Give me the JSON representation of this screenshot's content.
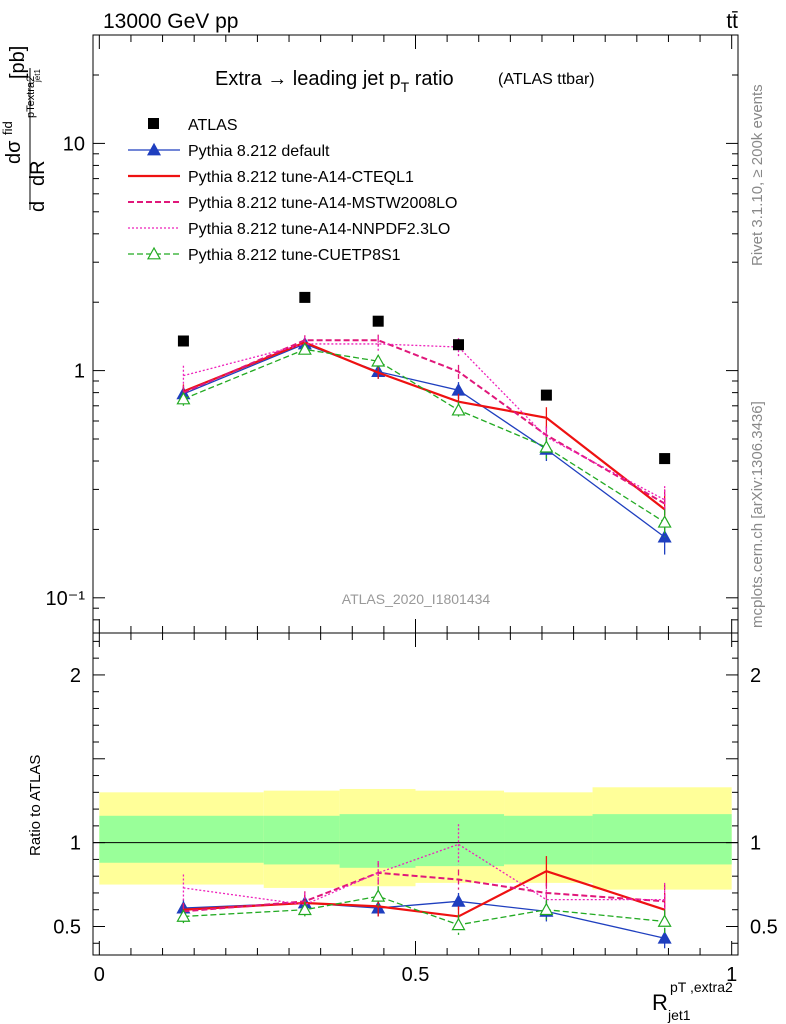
{
  "header": {
    "energy_label": "13000 GeV pp",
    "process_label": "tt̄"
  },
  "side": {
    "rivet_label": "Rivet 3.1.10, ≥ 200k events",
    "mcplots_label": "mcplots.cern.ch [arXiv:1306.3436]"
  },
  "chart_data": [
    {
      "type": "line",
      "title_main": "Extra → leading jet p",
      "title_sub": "T",
      "title_tail": " ratio",
      "title_small": "(ATLAS ttbar)",
      "ylabel": "dσ/dR [pb]",
      "watermark": "ATLAS_2020_I1801434",
      "yscale": "log",
      "ylim": [
        0.07,
        30
      ],
      "xlim": [
        -0.01,
        1.01
      ],
      "y_ticks": [
        {
          "v": 10,
          "label": "10"
        },
        {
          "v": 1,
          "label": "1"
        },
        {
          "v": 0.1,
          "label": "10⁻¹"
        }
      ],
      "x": [
        0.133,
        0.325,
        0.441,
        0.568,
        0.707,
        0.894
      ],
      "reference": {
        "name": "ATLAS",
        "values": [
          1.35,
          2.1,
          1.65,
          1.3,
          0.78,
          0.41
        ],
        "color": "#000000"
      },
      "series": [
        {
          "name": "Pythia 8.212 default",
          "color": "#1f3fbf",
          "style": "solid",
          "marker": "filled-triangle",
          "values": [
            0.79,
            1.31,
            0.99,
            0.82,
            0.45,
            0.185
          ],
          "errors": [
            0.06,
            0.06,
            0.07,
            0.07,
            0.05,
            0.03
          ]
        },
        {
          "name": "Pythia 8.212 tune-A14-CTEQL1",
          "color": "#ee1111",
          "style": "solid",
          "marker": "none",
          "values": [
            0.81,
            1.33,
            0.98,
            0.73,
            0.62,
            0.245
          ],
          "errors": [
            0.06,
            0.06,
            0.06,
            0.06,
            0.07,
            0.04
          ]
        },
        {
          "name": "Pythia 8.212 tune-A14-MSTW2008LO",
          "color": "#e0177a",
          "style": "dashed",
          "marker": "none",
          "values": [
            0.8,
            1.36,
            1.36,
            0.99,
            0.52,
            0.26
          ],
          "errors": [
            0.06,
            0.07,
            0.08,
            0.07,
            0.05,
            0.04
          ]
        },
        {
          "name": "Pythia 8.212 tune-A14-NNPDF2.3LO",
          "color": "#ee22bb",
          "style": "dotted",
          "marker": "none",
          "values": [
            0.95,
            1.31,
            1.31,
            1.27,
            0.51,
            0.27
          ],
          "errors": [
            0.1,
            0.1,
            0.1,
            0.12,
            0.05,
            0.04
          ]
        },
        {
          "name": "Pythia 8.212 tune-CUETP8S1",
          "color": "#22aa22",
          "style": "dashed",
          "marker": "open-triangle",
          "values": [
            0.75,
            1.24,
            1.1,
            0.67,
            0.46,
            0.215
          ],
          "errors": [
            0.05,
            0.06,
            0.07,
            0.06,
            0.05,
            0.03
          ]
        }
      ]
    },
    {
      "type": "line",
      "ylabel": "Ratio to ATLAS",
      "xlabel_main": "R",
      "xlabel_sub": "jet1",
      "xlabel_sup": "pT ,extra2",
      "ylim": [
        0.33,
        2.25
      ],
      "xlim": [
        -0.01,
        1.01
      ],
      "y_ticks": [
        {
          "v": 2,
          "label": "2"
        },
        {
          "v": 1,
          "label": "1"
        },
        {
          "v": 0.5,
          "label": "0.5"
        }
      ],
      "x_ticks": [
        {
          "v": 0,
          "label": "0"
        },
        {
          "v": 0.5,
          "label": "0.5"
        },
        {
          "v": 1,
          "label": "1"
        }
      ],
      "bands": {
        "bins": [
          [
            0,
            0.26
          ],
          [
            0.26,
            0.38
          ],
          [
            0.38,
            0.5
          ],
          [
            0.5,
            0.64
          ],
          [
            0.64,
            0.78
          ],
          [
            0.78,
            1.0
          ]
        ],
        "yellow": [
          [
            0.75,
            1.3
          ],
          [
            0.73,
            1.31
          ],
          [
            0.74,
            1.32
          ],
          [
            0.76,
            1.31
          ],
          [
            0.76,
            1.3
          ],
          [
            0.72,
            1.33
          ]
        ],
        "green": [
          [
            0.88,
            1.16
          ],
          [
            0.87,
            1.16
          ],
          [
            0.85,
            1.17
          ],
          [
            0.86,
            1.17
          ],
          [
            0.87,
            1.16
          ],
          [
            0.87,
            1.17
          ]
        ]
      },
      "series": [
        {
          "name": "Pythia 8.212 default",
          "color": "#1f3fbf",
          "style": "solid",
          "marker": "filled-triangle",
          "values": [
            0.61,
            0.64,
            0.61,
            0.65,
            0.59,
            0.43
          ],
          "errors": [
            0.05,
            0.04,
            0.05,
            0.05,
            0.06,
            0.06
          ]
        },
        {
          "name": "Pythia 8.212 tune-A14-CTEQL1",
          "color": "#ee1111",
          "style": "solid",
          "marker": "none",
          "values": [
            0.6,
            0.64,
            0.62,
            0.56,
            0.83,
            0.6
          ],
          "errors": [
            0.04,
            0.05,
            0.06,
            0.06,
            0.09,
            0.1
          ]
        },
        {
          "name": "Pythia 8.212 tune-A14-MSTW2008LO",
          "color": "#e0177a",
          "style": "dashed",
          "marker": "none",
          "values": [
            0.59,
            0.65,
            0.82,
            0.78,
            0.7,
            0.65
          ],
          "errors": [
            0.05,
            0.06,
            0.07,
            0.06,
            0.06,
            0.1
          ]
        },
        {
          "name": "Pythia 8.212 tune-A14-NNPDF2.3LO",
          "color": "#ee22bb",
          "style": "dotted",
          "marker": "none",
          "values": [
            0.73,
            0.63,
            0.82,
            0.99,
            0.66,
            0.66
          ],
          "errors": [
            0.08,
            0.07,
            0.07,
            0.12,
            0.06,
            0.1
          ]
        },
        {
          "name": "Pythia 8.212 tune-CUETP8S1",
          "color": "#22aa22",
          "style": "dashed",
          "marker": "open-triangle",
          "values": [
            0.56,
            0.6,
            0.68,
            0.51,
            0.6,
            0.53
          ],
          "errors": [
            0.04,
            0.05,
            0.06,
            0.06,
            0.06,
            0.07
          ]
        }
      ]
    }
  ]
}
